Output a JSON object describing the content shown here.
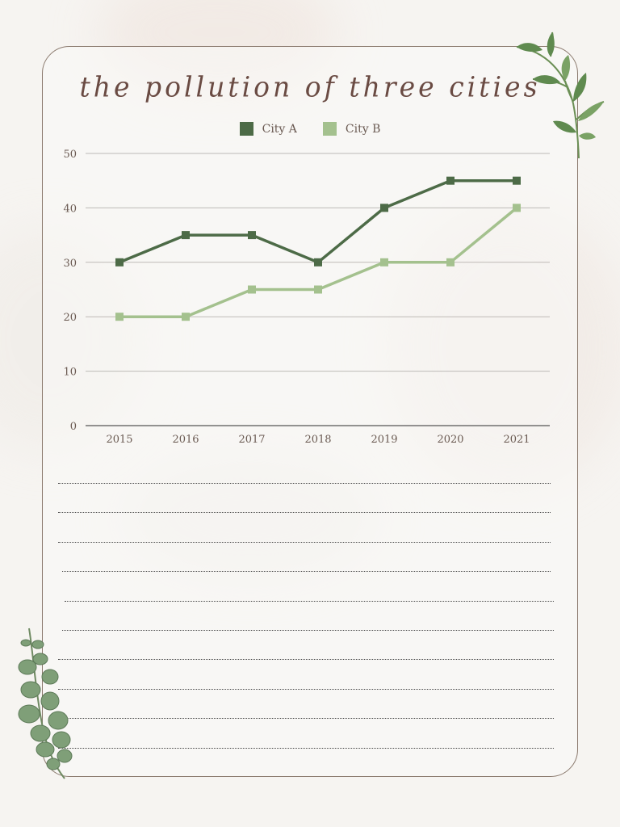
{
  "chart_data": {
    "type": "line",
    "title": "the pollution of three cities",
    "xlabel": "",
    "ylabel": "",
    "categories": [
      "2015",
      "2016",
      "2017",
      "2018",
      "2019",
      "2020",
      "2021"
    ],
    "series": [
      {
        "name": "City A",
        "color": "#4d6b47",
        "values": [
          30,
          35,
          35,
          30,
          40,
          45,
          45
        ]
      },
      {
        "name": "City B",
        "color": "#a4c18e",
        "values": [
          20,
          20,
          25,
          25,
          30,
          30,
          40
        ]
      }
    ],
    "ylim": [
      0,
      50
    ],
    "yticks": [
      "0",
      "10",
      "20",
      "30",
      "40",
      "50"
    ],
    "grid": true,
    "legend_position": "top-center"
  },
  "writing_lines": 10,
  "colors": {
    "border": "#8b7a6e",
    "title": "#6a4b43",
    "leaf": "#5f8a4f"
  },
  "decorations": [
    "leaf-branch-top-right-icon",
    "eucalyptus-branch-bottom-left-icon"
  ]
}
